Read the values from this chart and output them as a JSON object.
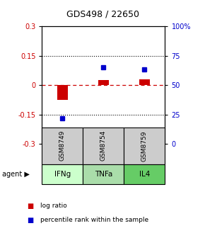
{
  "title": "GDS498 / 22650",
  "samples": [
    "GSM8749",
    "GSM8754",
    "GSM8759"
  ],
  "agents": [
    "IFNg",
    "TNFa",
    "IL4"
  ],
  "log_ratios": [
    -0.075,
    0.025,
    0.03
  ],
  "percentile_ranks": [
    22,
    65,
    63
  ],
  "ylim_left": [
    -0.3,
    0.3
  ],
  "ylim_right": [
    0,
    100
  ],
  "yticks_left": [
    -0.3,
    -0.15,
    0,
    0.15,
    0.3
  ],
  "yticks_right": [
    0,
    25,
    50,
    75,
    100
  ],
  "ytick_labels_right": [
    "0",
    "25",
    "50",
    "75",
    "100%"
  ],
  "bar_color": "#cc0000",
  "scatter_color": "#0000cc",
  "agent_face_colors": [
    "#ccffcc",
    "#aaddaa",
    "#66cc66"
  ],
  "sample_box_color": "#cccccc",
  "hline_color": "#cc0000",
  "bar_width": 0.25
}
